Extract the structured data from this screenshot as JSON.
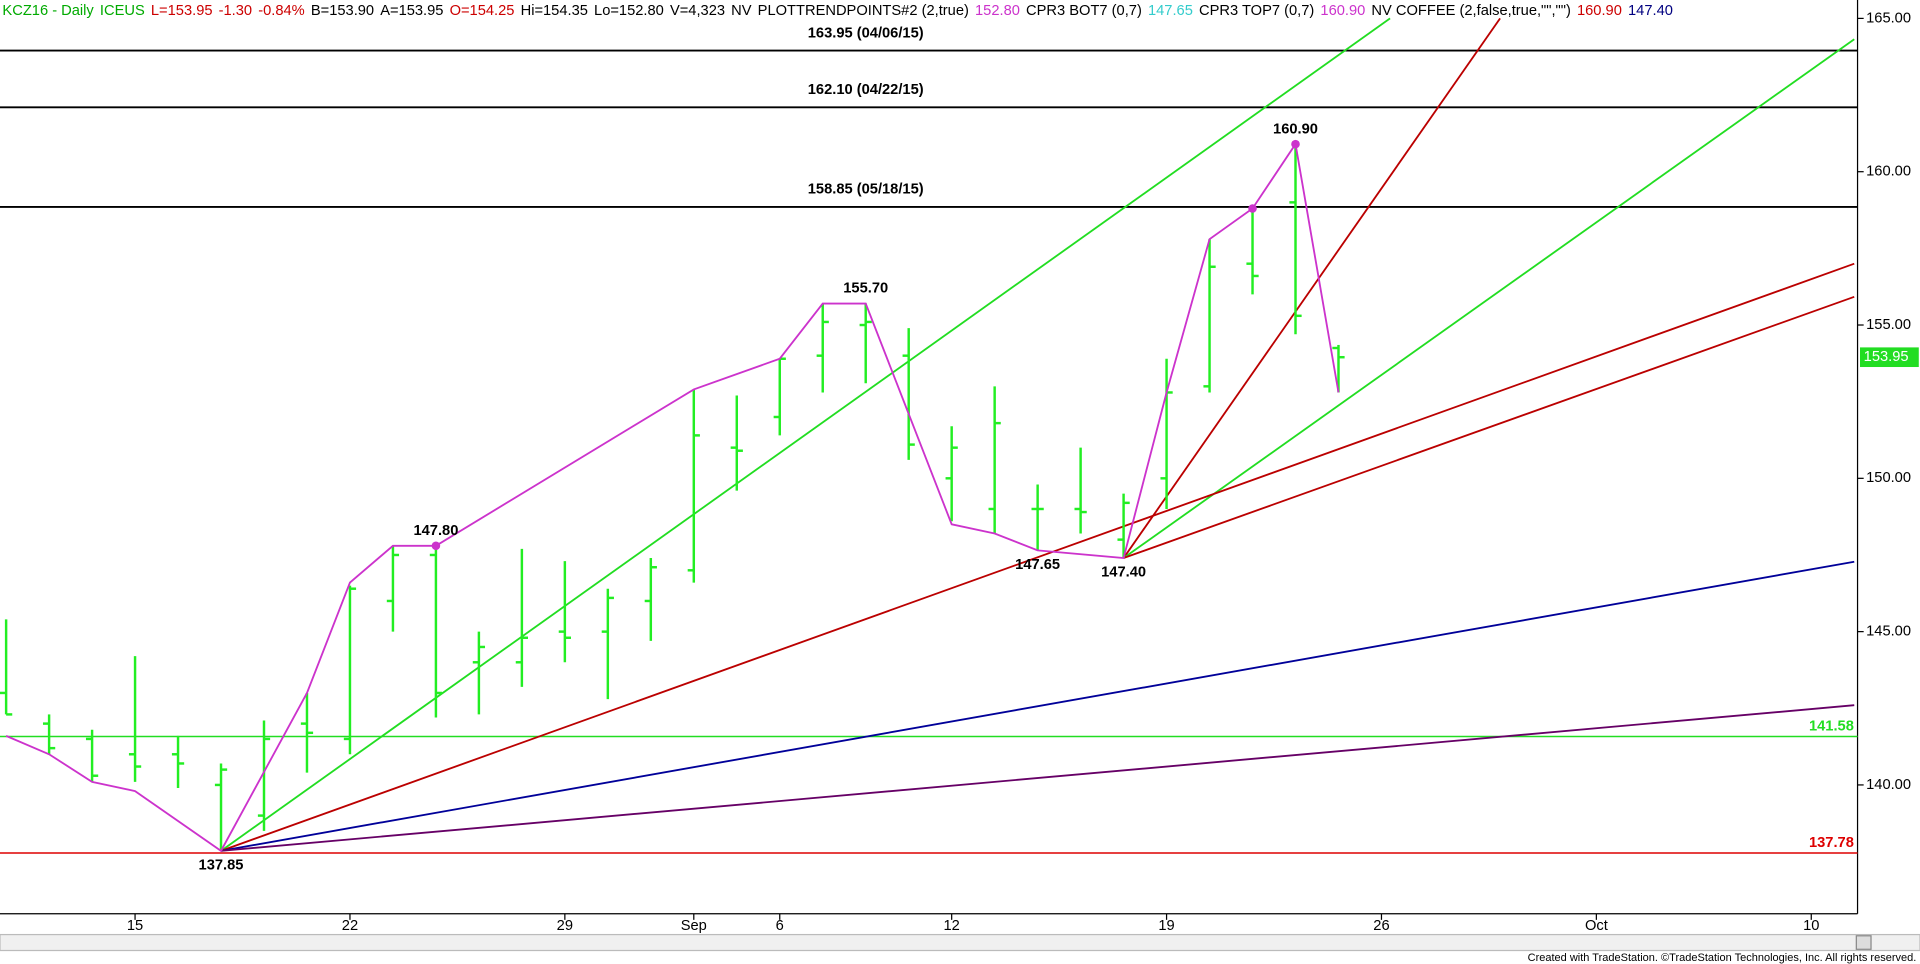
{
  "chart_data": {
    "type": "ohlc",
    "header": [
      {
        "text": "KCZ16 - Daily",
        "color": "#00aa00"
      },
      {
        "text": "ICEUS",
        "color": "#00aa00"
      },
      {
        "text": "L=153.95",
        "color": "#cc0000"
      },
      {
        "text": "-1.30",
        "color": "#cc0000"
      },
      {
        "text": "-0.84%",
        "color": "#cc0000"
      },
      {
        "text": "B=153.90",
        "color": "#000000"
      },
      {
        "text": "A=153.95",
        "color": "#000000"
      },
      {
        "text": "O=154.25",
        "color": "#cc0000"
      },
      {
        "text": "Hi=154.35",
        "color": "#000000"
      },
      {
        "text": "Lo=152.80",
        "color": "#000000"
      },
      {
        "text": "V=4,323",
        "color": "#000000"
      },
      {
        "text": "NV",
        "color": "#000000"
      },
      {
        "text": "PLOTTRENDPOINTS#2 (2,true)",
        "color": "#000000"
      },
      {
        "text": "152.80",
        "color": "#cc33cc"
      },
      {
        "text": "CPR3 BOT7 (0,7)",
        "color": "#000000"
      },
      {
        "text": "147.65",
        "color": "#33cccc"
      },
      {
        "text": "CPR3 TOP7 (0,7)",
        "color": "#000000"
      },
      {
        "text": "160.90",
        "color": "#cc33cc"
      },
      {
        "text": "NV COFFEE (2,false,true,\"\",\"\")",
        "color": "#000000"
      },
      {
        "text": "160.90",
        "color": "#cc0000"
      },
      {
        "text": "147.40",
        "color": "#000080"
      }
    ],
    "footer": "Created with TradeStation. ©TradeStation Technologies, Inc. All rights reserved.",
    "categories": [
      null,
      null,
      null,
      "15",
      null,
      null,
      null,
      null,
      "22",
      null,
      null,
      null,
      null,
      "29",
      null,
      null,
      "Sep",
      null,
      "6",
      null,
      null,
      null,
      "12",
      null,
      null,
      null,
      null,
      "19",
      null,
      null,
      null,
      null,
      "26",
      null,
      null,
      null,
      null,
      "Oct",
      null,
      null,
      null,
      null,
      "10",
      null
    ],
    "bar_color": "#22ee22",
    "open": [
      143,
      142,
      141.5,
      141,
      141,
      140,
      139,
      142,
      141.5,
      146,
      147.5,
      144,
      144,
      145,
      145,
      146,
      147,
      151,
      152,
      154,
      155,
      154,
      150,
      149,
      149,
      149,
      148,
      150,
      153,
      157,
      159,
      154.25,
      null,
      null,
      null,
      null,
      null,
      null,
      null,
      null,
      null,
      null,
      null,
      null
    ],
    "high": [
      145.4,
      142.3,
      141.8,
      144.2,
      141.6,
      140.7,
      142.1,
      143.0,
      146.5,
      147.8,
      147.8,
      145.0,
      147.7,
      147.3,
      146.4,
      147.4,
      152.9,
      152.7,
      153.9,
      155.7,
      155.7,
      154.9,
      151.7,
      153.0,
      149.8,
      151.0,
      149.5,
      153.9,
      157.8,
      158.8,
      160.9,
      154.35,
      null,
      null,
      null,
      null,
      null,
      null,
      null,
      null,
      null,
      null,
      null,
      null
    ],
    "low": [
      142.3,
      141.0,
      140.1,
      140.1,
      139.9,
      137.85,
      138.5,
      140.4,
      141.0,
      145.0,
      142.2,
      142.3,
      143.2,
      144.0,
      142.8,
      144.7,
      146.6,
      149.6,
      151.4,
      152.8,
      153.1,
      150.6,
      148.6,
      148.2,
      147.65,
      148.2,
      147.4,
      149.0,
      152.8,
      156.0,
      154.7,
      152.8,
      null,
      null,
      null,
      null,
      null,
      null,
      null,
      null,
      null,
      null,
      null,
      null
    ],
    "close": [
      142.3,
      141.2,
      140.3,
      140.6,
      140.7,
      140.5,
      141.5,
      141.7,
      146.4,
      147.5,
      143.0,
      144.5,
      144.8,
      144.8,
      146.1,
      147.1,
      151.4,
      150.9,
      153.9,
      155.1,
      155.1,
      151.1,
      151.0,
      151.8,
      149.0,
      148.9,
      149.2,
      152.8,
      156.9,
      156.6,
      155.3,
      153.95,
      null,
      null,
      null,
      null,
      null,
      null,
      null,
      null,
      null,
      null,
      null,
      null
    ],
    "ylim": [
      135.8,
      165.6
    ],
    "yticks": [
      {
        "value": 140,
        "label": "140.00"
      },
      {
        "value": 145,
        "label": "145.00"
      },
      {
        "value": 150,
        "label": "150.00"
      },
      {
        "value": 155,
        "label": "155.00"
      },
      {
        "value": 160,
        "label": "160.00"
      },
      {
        "value": 165,
        "label": "165.00"
      }
    ],
    "levels": [
      {
        "value": 163.95,
        "label": "163.95 (04/06/15)",
        "color": "#000000",
        "label_align": "center"
      },
      {
        "value": 162.1,
        "label": "162.10 (04/22/15)",
        "color": "#000000",
        "label_align": "center"
      },
      {
        "value": 158.85,
        "label": "158.85 (05/18/15)",
        "color": "#000000",
        "label_align": "center"
      },
      {
        "value": 141.58,
        "label": "141.58",
        "color": "#22dd22",
        "label_align": "right"
      },
      {
        "value": 137.78,
        "label": "137.78",
        "color": "#dd0000",
        "label_align": "right"
      }
    ],
    "swing_line": {
      "color": "#cc33cc",
      "points": [
        [
          0,
          141.6
        ],
        [
          1,
          141.0
        ],
        [
          2,
          140.1
        ],
        [
          3,
          139.8
        ],
        [
          5,
          137.85
        ],
        [
          7,
          143.0
        ],
        [
          8,
          146.6
        ],
        [
          9,
          147.8
        ],
        [
          10,
          147.8
        ],
        [
          16,
          152.9
        ],
        [
          18,
          153.9
        ],
        [
          19,
          155.7
        ],
        [
          20,
          155.7
        ],
        [
          22,
          148.5
        ],
        [
          23,
          148.2
        ],
        [
          24,
          147.65
        ],
        [
          26,
          147.4
        ],
        [
          27,
          152.8
        ],
        [
          28,
          157.8
        ],
        [
          29,
          158.8
        ],
        [
          30,
          160.9
        ],
        [
          31,
          152.8
        ]
      ]
    },
    "trend_lines": [
      {
        "color": "#22dd22",
        "from": [
          5,
          137.85
        ],
        "to": [
          32.2,
          165.0
        ]
      },
      {
        "color": "#bb0000",
        "from": [
          26,
          147.4
        ],
        "to": [
          34.76,
          165.0
        ]
      },
      {
        "color": "#22dd22",
        "from": [
          26,
          147.4
        ],
        "to": [
          43,
          164.32
        ]
      },
      {
        "color": "#bb0000",
        "from": [
          5,
          137.85
        ],
        "to": [
          43,
          157.0
        ]
      },
      {
        "color": "#bb0000",
        "from": [
          26,
          147.4
        ],
        "to": [
          43,
          155.92
        ]
      },
      {
        "color": "#000099",
        "from": [
          5,
          137.85
        ],
        "to": [
          43,
          147.28
        ]
      },
      {
        "color": "#660066",
        "from": [
          5,
          137.85
        ],
        "to": [
          43,
          142.6
        ]
      }
    ],
    "annotations": [
      {
        "index": 5,
        "value": 137.85,
        "label": "137.85",
        "position": "below"
      },
      {
        "index": 10,
        "value": 147.8,
        "label": "147.80",
        "position": "above"
      },
      {
        "index": 20,
        "value": 155.7,
        "label": "155.70",
        "position": "above"
      },
      {
        "index": 24,
        "value": 147.65,
        "label": "147.65",
        "position": "below"
      },
      {
        "index": 26,
        "value": 147.4,
        "label": "147.40",
        "position": "below"
      },
      {
        "index": 30,
        "value": 160.9,
        "label": "160.90",
        "position": "above"
      }
    ],
    "pivot_dots": [
      [
        10,
        147.8
      ],
      [
        29,
        158.8
      ],
      [
        30,
        160.9
      ]
    ]
  }
}
